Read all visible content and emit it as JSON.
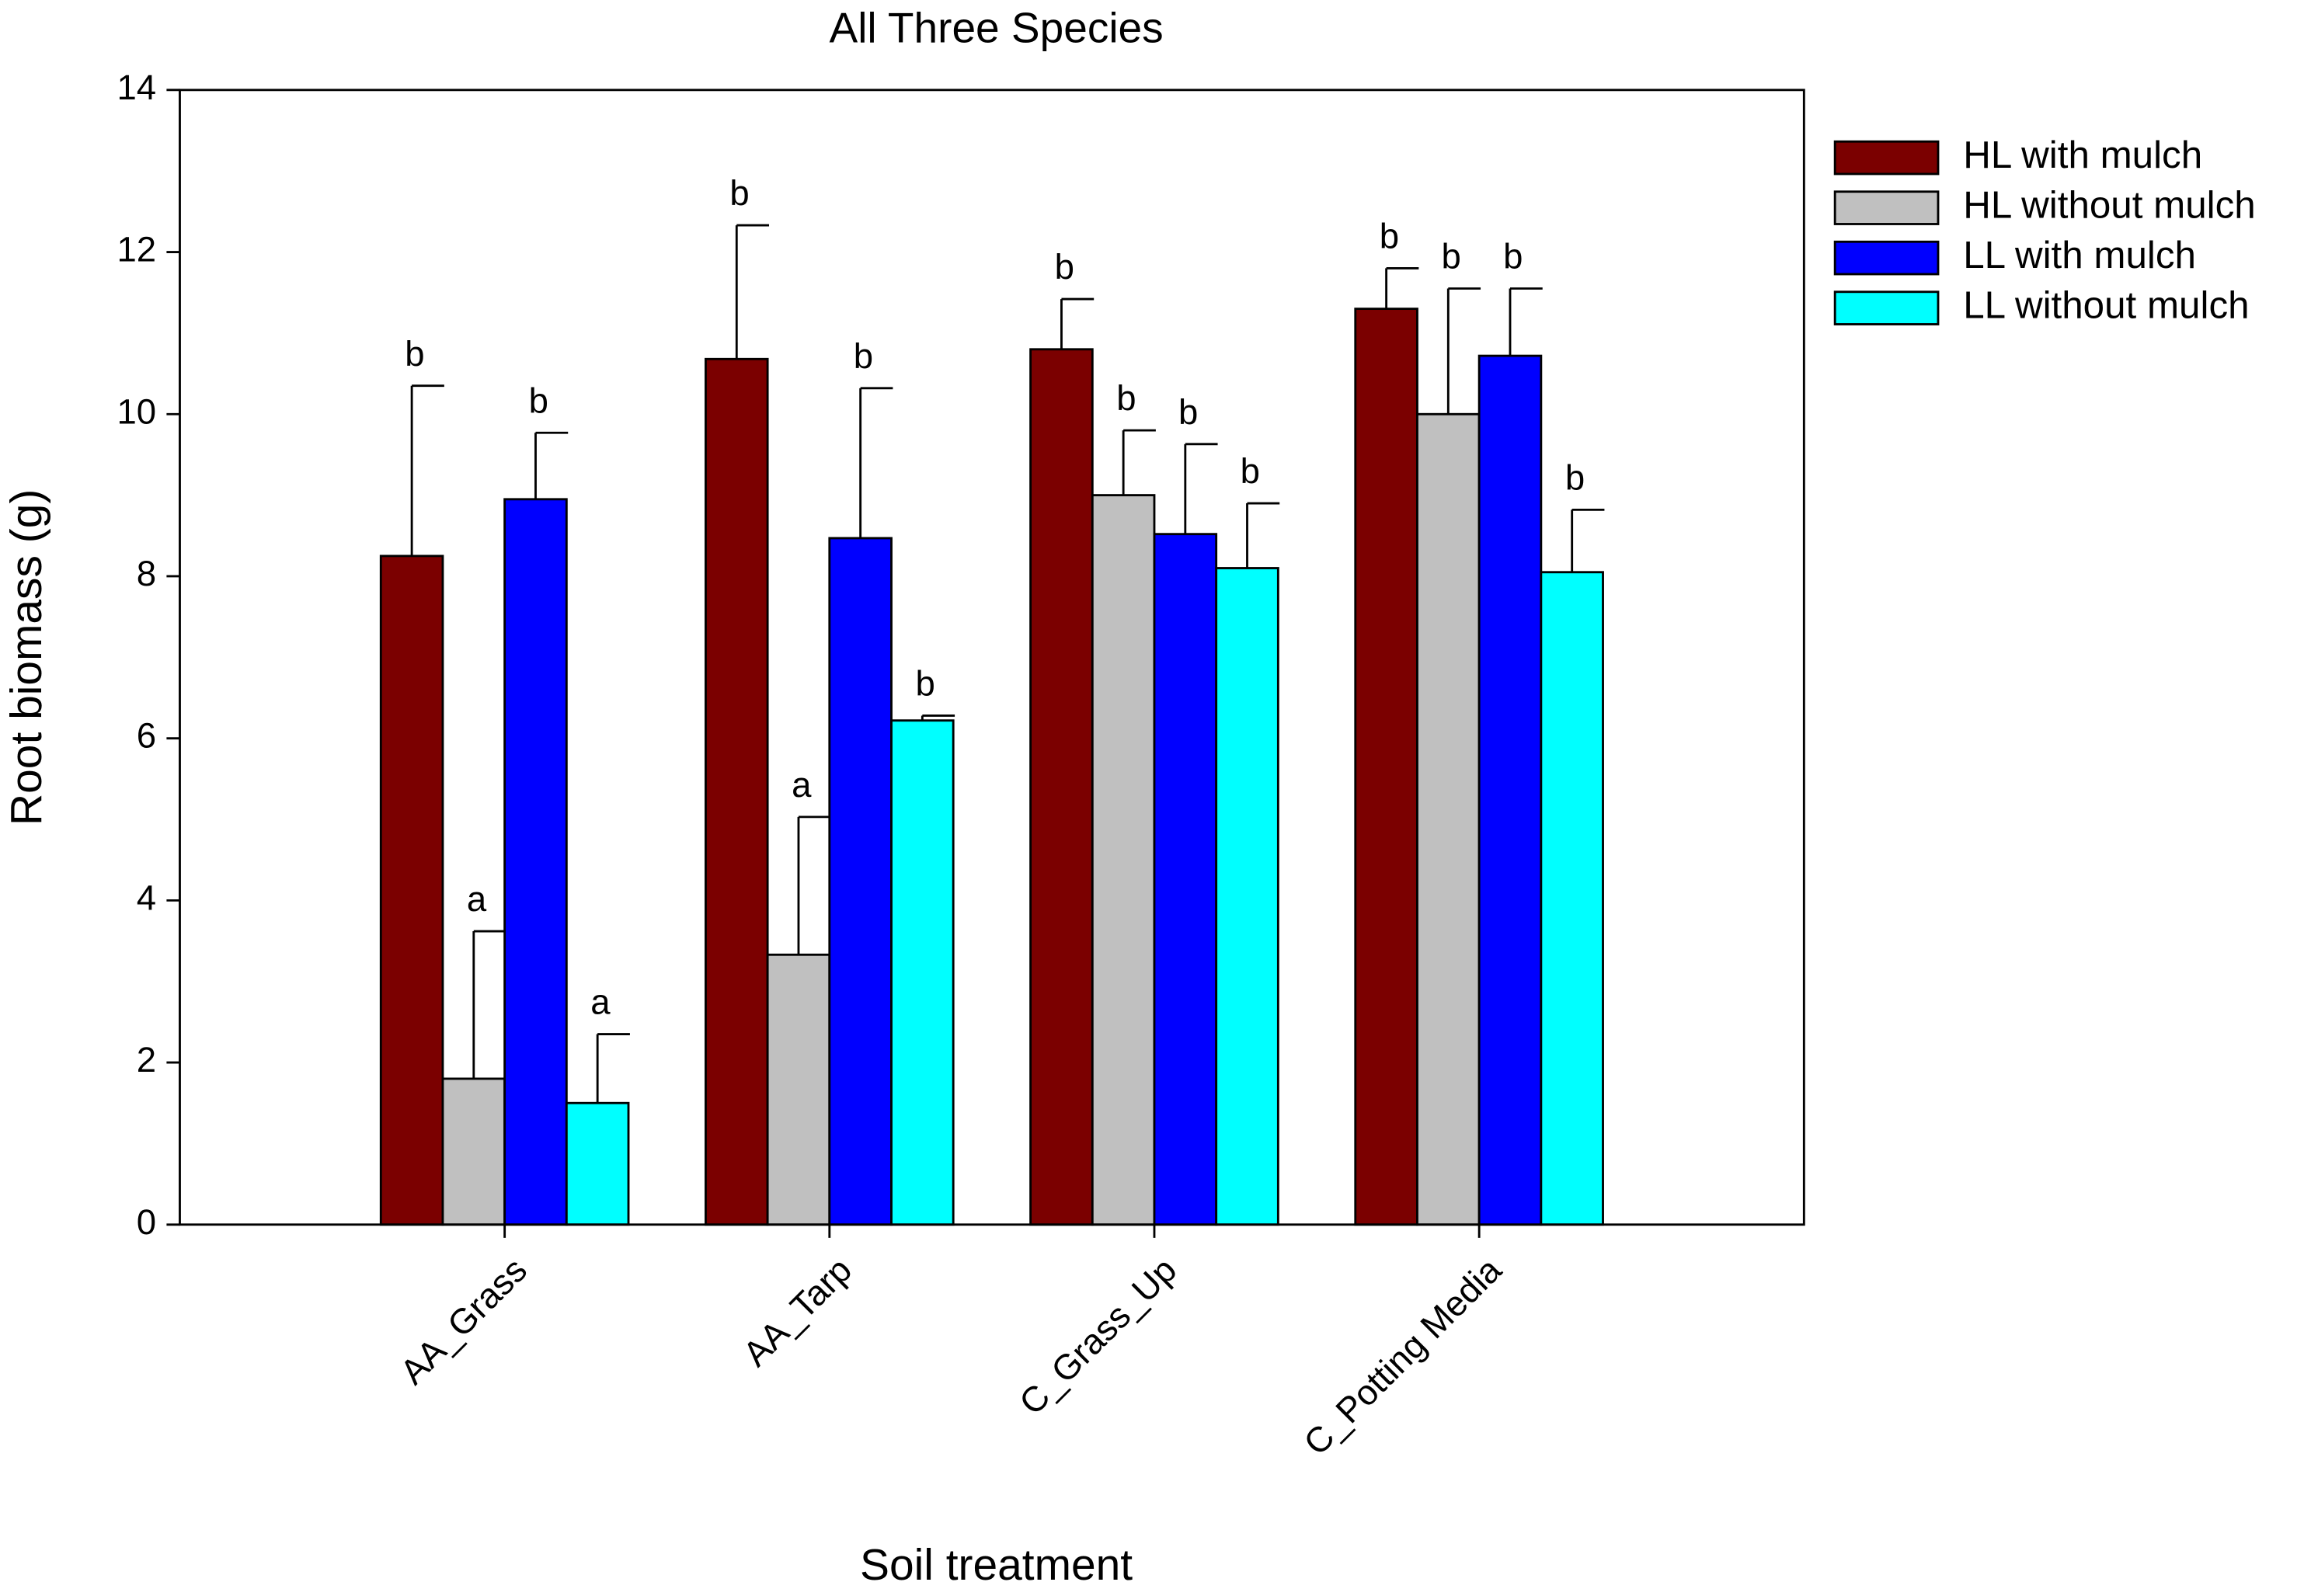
{
  "chart_data": {
    "type": "bar",
    "title": "All Three Species",
    "x_label": "Soil treatment",
    "y_label": "Root biomass (g)",
    "categories": [
      "AA_Grass",
      "AA_Tarp",
      "C_Grass_Up",
      "C_Potting Media"
    ],
    "series": [
      {
        "name": "HL with mulch",
        "color": "#7b0000",
        "values": [
          8.25,
          10.68,
          10.8,
          11.3
        ],
        "errors": [
          2.1,
          1.65,
          0.62,
          0.5
        ],
        "letters": [
          "b",
          "b",
          "b",
          "b"
        ]
      },
      {
        "name": "HL without mulch",
        "color": "#c0c0c0",
        "values": [
          1.8,
          3.33,
          9.0,
          10.0
        ],
        "errors": [
          1.82,
          1.7,
          0.8,
          1.55
        ],
        "letters": [
          "a",
          "a",
          "b",
          "b"
        ]
      },
      {
        "name": "LL with mulch",
        "color": "#0000ff",
        "values": [
          8.95,
          8.47,
          8.52,
          10.72
        ],
        "errors": [
          0.82,
          1.85,
          1.11,
          0.83
        ],
        "letters": [
          "b",
          "b",
          "b",
          "b"
        ]
      },
      {
        "name": "LL without mulch",
        "color": "#00ffff",
        "values": [
          1.5,
          6.22,
          8.1,
          8.05
        ],
        "errors": [
          0.85,
          0.06,
          0.8,
          0.77
        ],
        "letters": [
          "a",
          "b",
          "b",
          "b"
        ]
      }
    ],
    "ylim": [
      0,
      14
    ],
    "yticks": [
      0,
      2,
      4,
      6,
      8,
      10,
      12,
      14
    ],
    "legend": "right"
  }
}
